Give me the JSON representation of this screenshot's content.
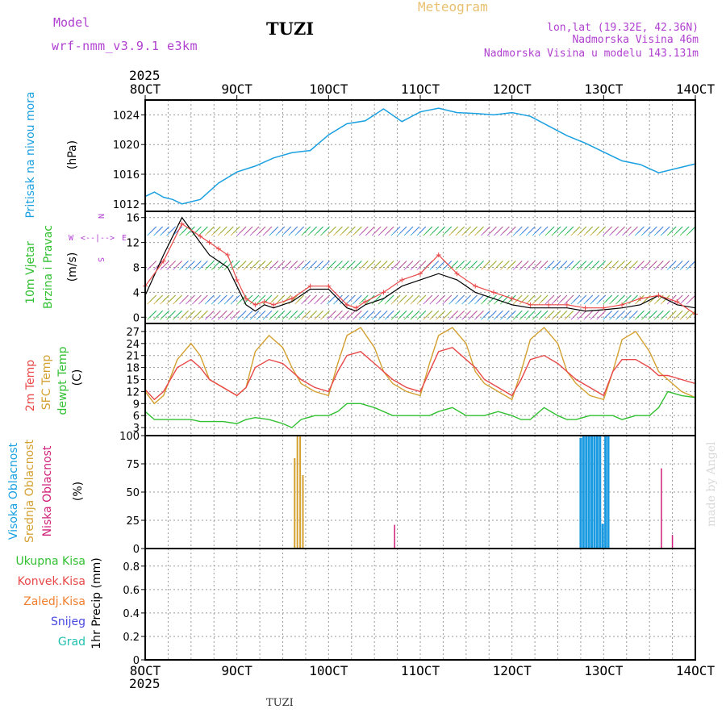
{
  "header": {
    "model_label": "Model",
    "model_name": "wrf-nmm_v3.9.1 e3km",
    "station": "TUZI",
    "meteogram": "Meteogram",
    "lonlat": "lon,lat (19.32E, 42.36N)",
    "elevation": "Nadmorska Visina 46m",
    "model_elevation": "Nadmorska Visina u modelu 143.131m",
    "footer_station": "TUZI",
    "watermark": "made by Angel"
  },
  "time_axis": {
    "year": "2025",
    "ticks": [
      "8OCT",
      "9OCT",
      "10OCT",
      "11OCT",
      "12OCT",
      "13OCT",
      "14OCT"
    ]
  },
  "colors": {
    "pressure": "#1aa0e0",
    "t2m": "#e84848",
    "sfc": "#d4a030",
    "dew": "#30c030",
    "high_cloud": "#1a9ae0",
    "mid_cloud": "#d4a030",
    "low_cloud": "#d0207a",
    "model": "#b040d0",
    "meteo": "#e8c070"
  },
  "chart_data": [
    {
      "type": "line",
      "name": "pressure",
      "ylabel_main": "Pritisak na nivou mora",
      "ylabel_unit": "(hPa)",
      "yticks": [
        "1012",
        "1016",
        "1020",
        "1024"
      ],
      "ylim": [
        1011,
        1026
      ],
      "x_days": [
        0,
        0.1,
        0.2,
        0.3,
        0.4,
        0.6,
        0.8,
        1.0,
        1.2,
        1.4,
        1.6,
        1.8,
        2.0,
        2.2,
        2.4,
        2.6,
        2.8,
        3.0,
        3.2,
        3.4,
        3.6,
        3.8,
        4.0,
        4.2,
        4.4,
        4.6,
        4.8,
        5.0,
        5.2,
        5.4,
        5.6,
        5.8,
        6.0
      ],
      "values": [
        1013,
        1013.6,
        1012.9,
        1012.6,
        1012,
        1012.6,
        1014.8,
        1016.3,
        1017.1,
        1018.2,
        1018.9,
        1019.2,
        1021.3,
        1022.8,
        1023.2,
        1024.8,
        1023.1,
        1024.4,
        1024.9,
        1024.3,
        1024.2,
        1024.0,
        1024.3,
        1023.8,
        1022.5,
        1021.2,
        1020.2,
        1019.0,
        1017.8,
        1017.3,
        1016.2,
        1016.8,
        1017.4
      ]
    },
    {
      "type": "line",
      "name": "wind",
      "ylabel_1": "10m Vjetar",
      "ylabel_2": "Brzina i Pravac",
      "ylabel_unit": "(m/s)",
      "compass": [
        "N",
        "W",
        "E",
        "S"
      ],
      "yticks": [
        "0",
        "4",
        "8",
        "12",
        "16"
      ],
      "ylim": [
        -1,
        17
      ],
      "x_days": [
        0,
        0.2,
        0.4,
        0.6,
        0.7,
        0.8,
        0.9,
        1.0,
        1.1,
        1.2,
        1.3,
        1.4,
        1.6,
        1.8,
        2.0,
        2.2,
        2.3,
        2.4,
        2.6,
        2.8,
        3.0,
        3.2,
        3.4,
        3.6,
        3.8,
        4.0,
        4.2,
        4.4,
        4.6,
        4.8,
        5.0,
        5.2,
        5.4,
        5.6,
        5.8,
        6.0
      ],
      "speed": [
        3.5,
        10,
        16,
        12,
        10,
        9,
        8,
        5,
        2,
        1,
        2,
        1.5,
        2.5,
        4.5,
        4.5,
        1.5,
        1,
        2,
        3,
        5,
        6,
        7,
        6,
        4,
        3,
        2,
        1.5,
        1.5,
        1.5,
        1,
        1.2,
        1.5,
        2,
        3.5,
        2,
        1.5
      ],
      "gust": [
        5,
        9,
        15,
        13,
        12,
        11,
        10,
        6,
        3,
        2,
        2.5,
        2,
        3,
        5,
        5,
        2,
        1.5,
        2.5,
        4,
        6,
        7,
        10,
        7,
        5,
        4,
        3,
        2,
        2,
        2,
        1.5,
        1.5,
        2,
        3,
        3.5,
        2.5,
        0.5
      ],
      "barb_rows": [
        0,
        2.5,
        8,
        13.5
      ]
    },
    {
      "type": "line",
      "name": "temperature",
      "ylabel_1": "2m Temp",
      "ylabel_2": "SFC Temp",
      "ylabel_3": "dewpt Temp",
      "ylabel_unit": "(C)",
      "yticks": [
        "3",
        "6",
        "9",
        "12",
        "15",
        "18",
        "21",
        "24",
        "27"
      ],
      "ylim": [
        1,
        29
      ],
      "x_days": [
        0,
        0.1,
        0.2,
        0.35,
        0.5,
        0.6,
        0.7,
        0.85,
        1.0,
        1.1,
        1.2,
        1.35,
        1.5,
        1.6,
        1.7,
        1.85,
        2.0,
        2.1,
        2.2,
        2.35,
        2.5,
        2.6,
        2.7,
        2.85,
        3.0,
        3.1,
        3.2,
        3.35,
        3.5,
        3.6,
        3.7,
        3.85,
        4.0,
        4.1,
        4.2,
        4.35,
        4.5,
        4.6,
        4.7,
        4.85,
        5.0,
        5.1,
        5.2,
        5.35,
        5.5,
        5.6,
        5.7,
        5.85,
        6.0
      ],
      "t2m": [
        12.5,
        10,
        12,
        18,
        20,
        18,
        15,
        13,
        11,
        13,
        18,
        20,
        19,
        17,
        15,
        13,
        12,
        17,
        21,
        22,
        19,
        17,
        15,
        13,
        12,
        17,
        22,
        23,
        20,
        18,
        15,
        13,
        11,
        15,
        20,
        21,
        19,
        17,
        15,
        13,
        11,
        17,
        20,
        20,
        18,
        16,
        16,
        15,
        14
      ],
      "sfc": [
        12,
        9,
        11,
        20,
        24,
        21,
        15,
        13,
        11,
        13,
        22,
        26,
        23,
        18,
        14,
        12,
        11,
        19,
        26,
        28,
        23,
        17,
        14,
        12,
        11,
        19,
        26,
        28,
        24,
        17,
        14,
        12,
        10,
        17,
        25,
        28,
        24,
        17,
        14,
        11,
        10,
        17,
        25,
        27,
        22,
        17,
        15,
        12,
        10.5
      ],
      "dew": [
        7,
        5,
        5,
        5,
        5,
        4.5,
        4.5,
        4.5,
        4,
        5,
        5.5,
        5,
        4,
        3,
        5,
        6,
        6,
        7,
        9,
        9,
        8,
        7,
        6,
        6,
        6,
        6,
        7,
        8,
        6,
        6,
        6,
        7,
        6,
        5,
        5,
        8,
        6,
        5,
        5,
        6,
        6,
        6,
        5,
        6,
        6,
        8,
        12,
        11,
        10.5
      ]
    },
    {
      "type": "bar",
      "name": "cloud",
      "ylabel_1": "Visoka Oblacnost",
      "ylabel_2": "Srednja Oblacnost",
      "ylabel_3": "Niska Oblacnost",
      "ylabel_unit": "(%)",
      "yticks": [
        "0",
        "25",
        "50",
        "75",
        "100"
      ],
      "ylim": [
        0,
        100
      ],
      "mid_x_days": [
        1.63,
        1.66,
        1.69,
        1.72
      ],
      "mid_values": [
        80,
        100,
        100,
        65
      ],
      "high_x_days": [
        4.75,
        4.78,
        4.81,
        4.84,
        4.87,
        4.9,
        4.93,
        4.96,
        4.99,
        5.02,
        5.05
      ],
      "high_values": [
        98,
        100,
        100,
        100,
        100,
        100,
        100,
        100,
        22,
        100,
        100
      ],
      "low_x_days": [
        2.72,
        5.63,
        5.75
      ],
      "low_values": [
        21,
        71,
        12
      ]
    },
    {
      "type": "bar",
      "name": "precip",
      "ylabel_1": "Ukupna Kisa",
      "ylabel_2": "Konvek.Kisa",
      "ylabel_3": "Zaledj.Kisa",
      "ylabel_4": "Snijeg",
      "ylabel_5": "Grad",
      "ylabel_unit": "1hr Precip (mm)",
      "yticks": [
        "0",
        "0.2",
        "0.4",
        "0.6",
        "0.8"
      ],
      "ylim": [
        0,
        0.95
      ],
      "values": []
    }
  ]
}
